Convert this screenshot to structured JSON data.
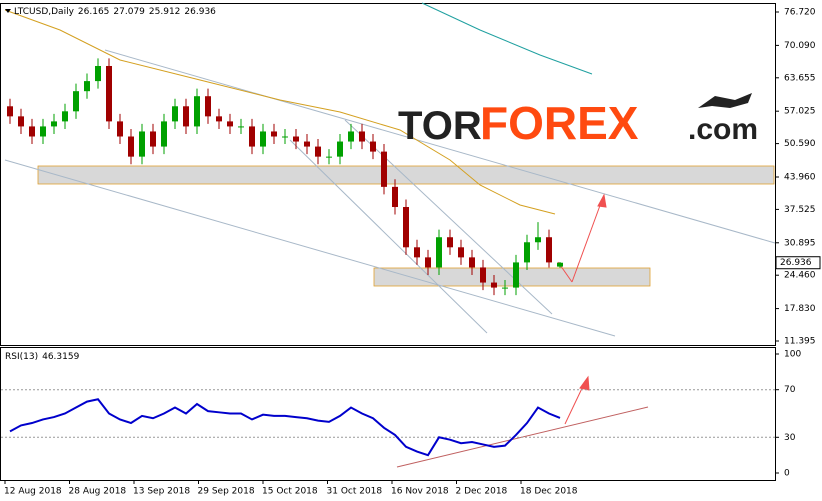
{
  "chart_data": [
    {
      "type": "candlestick",
      "title": "LTCUSD,Daily",
      "open": [
        58,
        56,
        54,
        52,
        54,
        55,
        57,
        61,
        63,
        66,
        55,
        52,
        48,
        53,
        50,
        55,
        58,
        54,
        60,
        56,
        55,
        54,
        54,
        50,
        53,
        52,
        52,
        51,
        50,
        48,
        48,
        51,
        53,
        51,
        49,
        42,
        38,
        30,
        28,
        26,
        32,
        30,
        28,
        26,
        23,
        22,
        22,
        27,
        31,
        32,
        26.165
      ],
      "high": [
        59.5,
        57.5,
        55.5,
        55.5,
        56.5,
        58.5,
        62.5,
        64.5,
        67.5,
        67.5,
        56.5,
        53.5,
        54.5,
        54.5,
        56.5,
        59.5,
        59.5,
        61.5,
        61.5,
        57.5,
        56.5,
        55.5,
        55.5,
        54.5,
        54.5,
        53.5,
        53.5,
        52.5,
        51.5,
        49.5,
        52.5,
        54.5,
        54.5,
        52.5,
        50.5,
        43.5,
        39.5,
        31.5,
        29.5,
        33.5,
        33.5,
        31.5,
        29.5,
        27.5,
        24.5,
        23.5,
        28.5,
        32.5,
        35,
        33.5,
        27.079
      ],
      "low": [
        54.5,
        52.5,
        50.5,
        50.5,
        52.5,
        53.5,
        55.5,
        59.5,
        61.5,
        53.5,
        50.5,
        46.5,
        46.5,
        48.5,
        48.5,
        53.5,
        52.5,
        52.5,
        54.5,
        53.5,
        52.5,
        52.5,
        48.5,
        48.5,
        50.5,
        50.5,
        49.5,
        48.5,
        46.5,
        46.5,
        46.5,
        49.5,
        49.5,
        47.5,
        40.5,
        36.5,
        28.5,
        26.5,
        24.5,
        24.5,
        28.5,
        26.5,
        24.5,
        21.5,
        20.5,
        20.5,
        20.5,
        25.5,
        29.5,
        26,
        25.912
      ],
      "close": [
        56,
        54,
        52,
        54,
        55,
        57,
        61,
        63,
        66,
        55,
        52,
        48,
        53,
        50,
        55,
        58,
        54,
        60,
        56,
        55,
        54,
        54,
        50,
        53,
        52,
        52,
        51,
        50,
        48,
        48,
        51,
        53,
        51,
        49,
        42,
        38,
        30,
        28,
        26,
        32,
        30,
        28,
        26,
        23,
        22,
        22,
        27,
        31,
        32,
        27,
        26.936
      ],
      "up_color": "#00a000",
      "down_color": "#a00000",
      "ylim": [
        11.395,
        76.72
      ],
      "yticks": [
        {
          "value": 11.395,
          "label": "11.395"
        },
        {
          "value": 17.83,
          "label": "17.830"
        },
        {
          "value": 24.46,
          "label": "24.460"
        },
        {
          "value": 30.895,
          "label": "30.895"
        },
        {
          "value": 37.525,
          "label": "37.525"
        },
        {
          "value": 43.96,
          "label": "43.960"
        },
        {
          "value": 50.59,
          "label": "50.590"
        },
        {
          "value": 57.025,
          "label": "57.025"
        },
        {
          "value": 63.655,
          "label": "63.655"
        },
        {
          "value": 70.09,
          "label": "70.090"
        },
        {
          "value": 76.72,
          "label": "76.720"
        }
      ],
      "xticks": [
        "12 Aug 2018",
        "28 Aug 2018",
        "13 Sep 2018",
        "29 Sep 2018",
        "15 Oct 2018",
        "31 Oct 2018",
        "16 Nov 2018",
        "2 Dec 2018",
        "18 Dec 2018"
      ]
    },
    {
      "type": "line",
      "title": "RSI(13)",
      "color": "#0000cc",
      "values": [
        35,
        40,
        42,
        45,
        47,
        50,
        55,
        60,
        62,
        50,
        45,
        42,
        48,
        46,
        50,
        55,
        50,
        58,
        52,
        51,
        50,
        50,
        45,
        49,
        48,
        48,
        47,
        46,
        44,
        43,
        48,
        55,
        50,
        46,
        38,
        32,
        22,
        18,
        15,
        30,
        28,
        25,
        26,
        24,
        22,
        23,
        32,
        42,
        55,
        50,
        46.3159
      ],
      "ylim": [
        0,
        100
      ],
      "yticks": [
        0,
        30,
        70,
        100
      ]
    }
  ],
  "logo": {
    "part1": "TOR",
    "part2": "FOREX",
    "part3": ".com"
  }
}
